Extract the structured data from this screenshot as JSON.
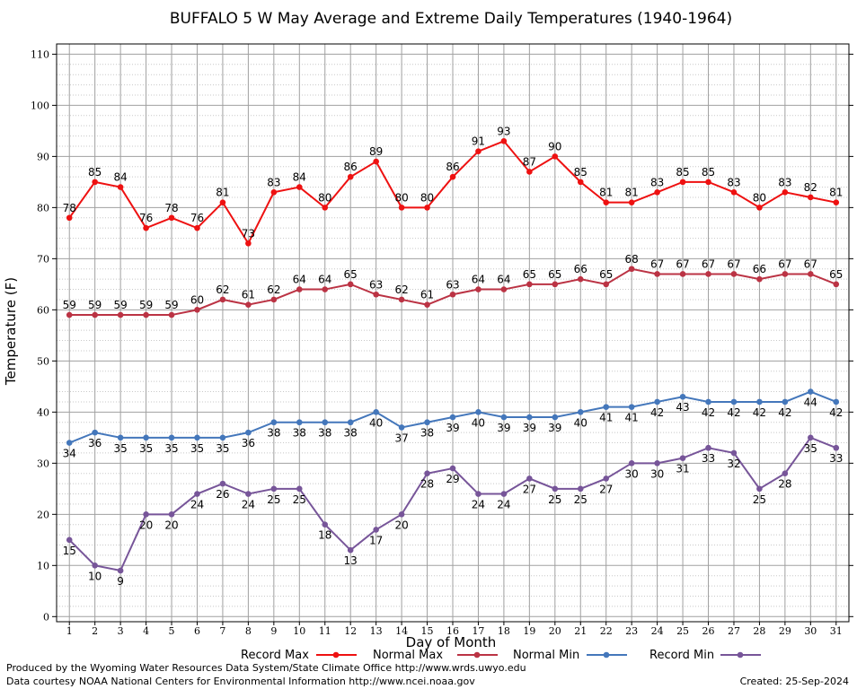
{
  "chart_data": {
    "type": "line",
    "title": "BUFFALO 5 W May Average and Extreme Daily Temperatures (1940-1964)",
    "xlabel": "Day of Month",
    "ylabel": "Temperature (F)",
    "x": [
      1,
      2,
      3,
      4,
      5,
      6,
      7,
      8,
      9,
      10,
      11,
      12,
      13,
      14,
      15,
      16,
      17,
      18,
      19,
      20,
      21,
      22,
      23,
      24,
      25,
      26,
      27,
      28,
      29,
      30,
      31
    ],
    "xlim": [
      0.5,
      31.5
    ],
    "ylim": [
      -1,
      112
    ],
    "yticks": [
      0,
      10,
      20,
      30,
      40,
      50,
      60,
      70,
      80,
      90,
      100,
      110
    ],
    "grid": true,
    "legend_position": "bottom",
    "series": [
      {
        "name": "Record Max",
        "color": "#ee1111",
        "label_position": "above",
        "values": [
          78,
          85,
          84,
          76,
          78,
          76,
          81,
          73,
          83,
          84,
          80,
          86,
          89,
          80,
          80,
          86,
          91,
          93,
          87,
          90,
          85,
          81,
          81,
          83,
          85,
          85,
          83,
          80,
          83,
          82,
          81
        ]
      },
      {
        "name": "Normal Max",
        "color": "#bb3344",
        "label_position": "above",
        "values": [
          59,
          59,
          59,
          59,
          59,
          60,
          62,
          61,
          62,
          64,
          64,
          65,
          63,
          62,
          61,
          63,
          64,
          64,
          65,
          65,
          66,
          65,
          68,
          67,
          67,
          67,
          67,
          66,
          67,
          67,
          65
        ]
      },
      {
        "name": "Normal Min",
        "color": "#4477bb",
        "label_position": "below",
        "values": [
          34,
          36,
          35,
          35,
          35,
          35,
          35,
          36,
          38,
          38,
          38,
          38,
          40,
          37,
          38,
          39,
          40,
          39,
          39,
          39,
          40,
          41,
          41,
          42,
          43,
          42,
          42,
          42,
          42,
          44,
          42
        ]
      },
      {
        "name": "Record Min",
        "color": "#775599",
        "label_position": "below",
        "values": [
          15,
          10,
          9,
          20,
          20,
          24,
          26,
          24,
          25,
          25,
          18,
          13,
          17,
          20,
          28,
          29,
          24,
          24,
          27,
          25,
          25,
          27,
          30,
          30,
          31,
          33,
          32,
          25,
          28,
          35,
          33
        ]
      }
    ]
  },
  "footer": {
    "produced_by": "Produced by the Wyoming Water Resources Data System/State Climate Office http://www.wrds.uwyo.edu",
    "courtesy": "Data courtesy NOAA National Centers for Environmental Information http://www.ncei.noaa.gov",
    "created": "Created:  25-Sep-2024"
  }
}
